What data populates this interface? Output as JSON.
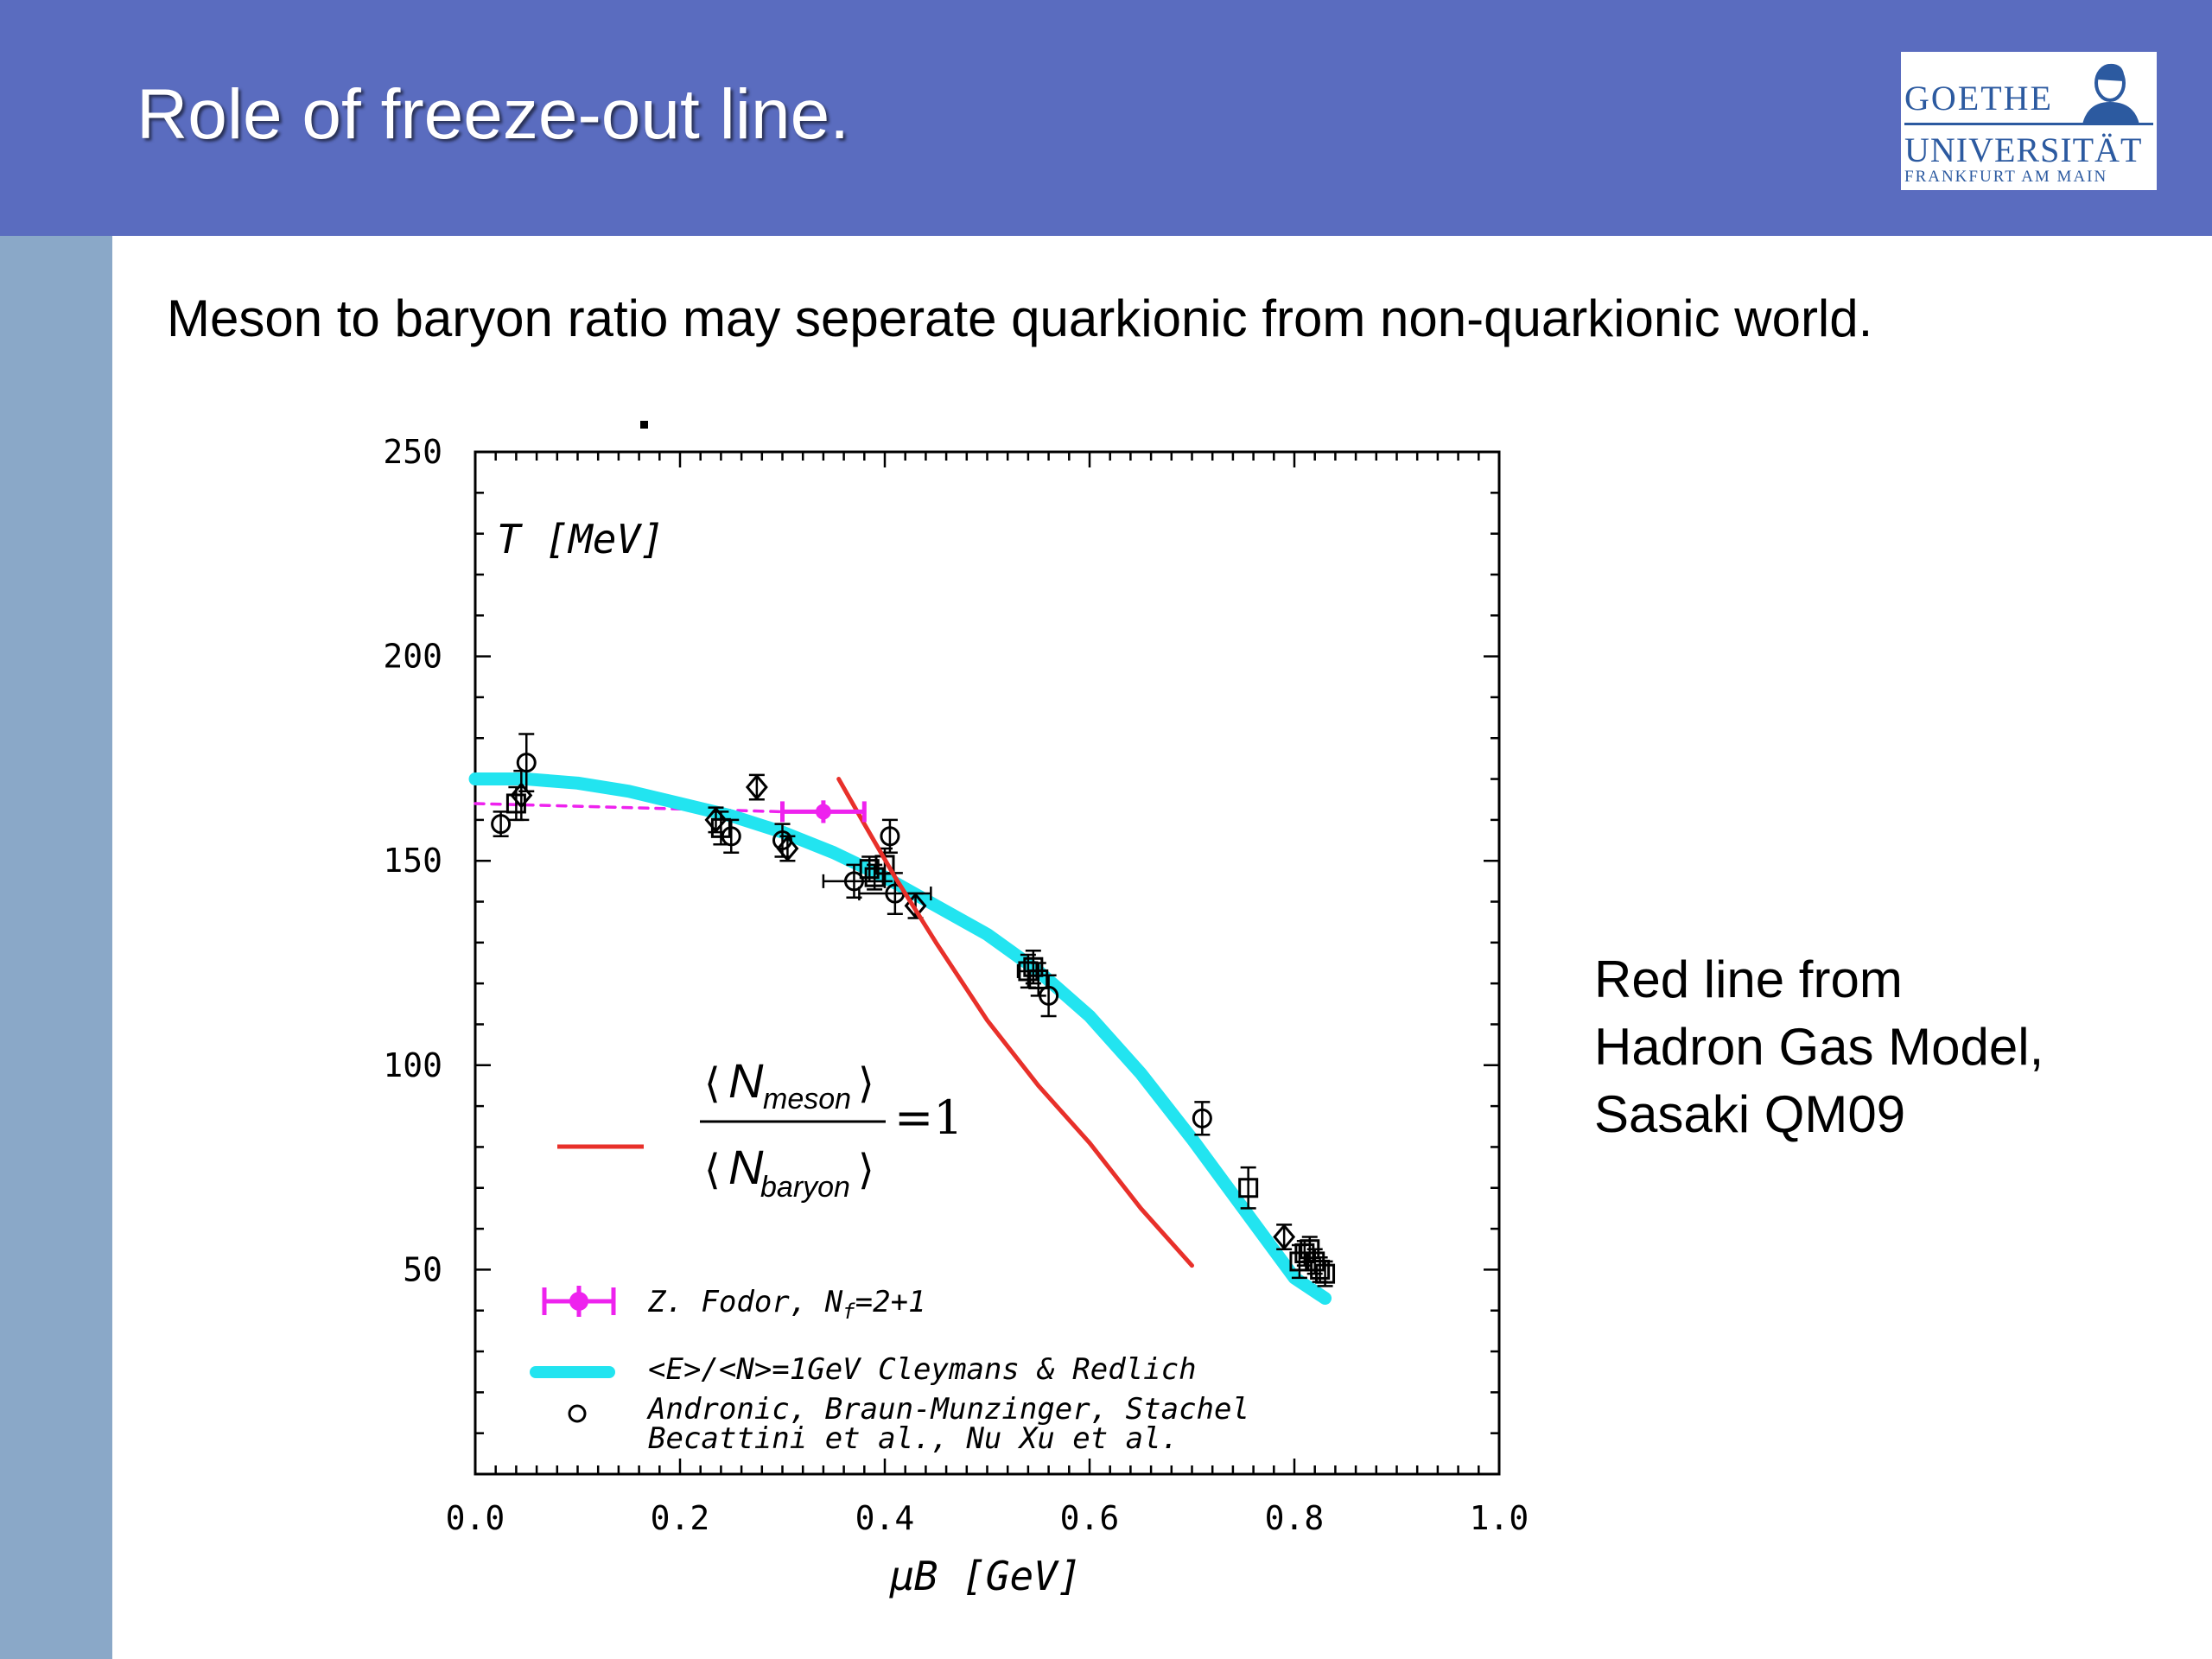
{
  "slide": {
    "title": "Role of freeze-out line.",
    "subtitle": "Meson to baryon ratio may seperate quarkionic from non-quarkionic world.",
    "note_lines": [
      "Red line from",
      "Hadron Gas Model,",
      "Sasaki QM09"
    ]
  },
  "logo": {
    "line1": "GOETHE",
    "line2": "UNIVERSITÄT",
    "line3": "FRANKFURT AM MAIN"
  },
  "colors": {
    "header": "#5a6cbf",
    "sidebar": "#8aa8c8",
    "red_line": "#e8302a",
    "cyan_curve": "#22e4f0",
    "magenta": "#ee22ee",
    "logo_blue": "#2c5aa0"
  },
  "chart_data": {
    "type": "scatter",
    "xlabel": "μB [GeV]",
    "ylabel": "T [MeV]",
    "xlim": [
      0.0,
      1.0
    ],
    "ylim": [
      0,
      250
    ],
    "xticks": [
      "0.0",
      "0.2",
      "0.4",
      "0.6",
      "0.8",
      "1.0"
    ],
    "yticks": [
      "50",
      "100",
      "150",
      "200",
      "250"
    ],
    "ratio_label": {
      "numerator": "N",
      "numerator_sub": "meson",
      "denominator": "N",
      "denominator_sub": "baryon",
      "equals": "=1"
    },
    "legend": [
      {
        "key": "fodor",
        "label": "Z. Fodor, N",
        "sub": "f",
        "suffix": "=2+1"
      },
      {
        "key": "cleymans",
        "label": "<E>/<N>=1GeV Cleymans & Redlich"
      },
      {
        "key": "data",
        "label": "Andronic, Braun-Munzinger, Stachel",
        "label2": "Becattini et al., Nu Xu et al."
      }
    ],
    "series": [
      {
        "key": "cleymans",
        "style": "line",
        "color": "#22e4f0",
        "x": [
          0.0,
          0.05,
          0.1,
          0.15,
          0.2,
          0.25,
          0.3,
          0.35,
          0.4,
          0.45,
          0.5,
          0.55,
          0.6,
          0.65,
          0.7,
          0.75,
          0.8,
          0.83
        ],
        "y": [
          170,
          170,
          169,
          167,
          164,
          161,
          157,
          152,
          146,
          139,
          132,
          123,
          112,
          98,
          82,
          65,
          48,
          43
        ]
      },
      {
        "key": "hadron_gas_model",
        "style": "line",
        "color": "#e8302a",
        "x": [
          0.355,
          0.38,
          0.41,
          0.45,
          0.5,
          0.55,
          0.6,
          0.65,
          0.7
        ],
        "y": [
          170,
          159,
          146,
          130,
          111,
          95,
          81,
          65,
          51
        ]
      },
      {
        "key": "fodor_dashed",
        "style": "dashed",
        "color": "#ee22ee",
        "x": [
          0.0,
          0.3
        ],
        "y": [
          164,
          162
        ]
      },
      {
        "key": "fodor",
        "style": "point",
        "color": "#ee22ee",
        "points": [
          {
            "x": 0.34,
            "y": 162,
            "xerr": 0.04,
            "yerr": 1.5
          }
        ]
      },
      {
        "key": "data",
        "style": "markers",
        "color": "#000000",
        "points": [
          {
            "x": 0.025,
            "y": 159,
            "marker": "circle",
            "yerr": 3
          },
          {
            "x": 0.04,
            "y": 164,
            "marker": "square",
            "yerr": 4
          },
          {
            "x": 0.045,
            "y": 166,
            "marker": "diamond",
            "yerr": 6
          },
          {
            "x": 0.05,
            "y": 174,
            "marker": "circle",
            "yerr": 7
          },
          {
            "x": 0.235,
            "y": 160,
            "marker": "diamond",
            "yerr": 3
          },
          {
            "x": 0.24,
            "y": 158,
            "marker": "square",
            "yerr": 4
          },
          {
            "x": 0.25,
            "y": 156,
            "marker": "circle",
            "yerr": 4
          },
          {
            "x": 0.275,
            "y": 168,
            "marker": "diamond",
            "yerr": 3
          },
          {
            "x": 0.3,
            "y": 155,
            "marker": "circle",
            "yerr": 4
          },
          {
            "x": 0.305,
            "y": 153,
            "marker": "diamond",
            "yerr": 3
          },
          {
            "x": 0.37,
            "y": 145,
            "marker": "circle",
            "xerr": 0.03,
            "yerr": 4
          },
          {
            "x": 0.385,
            "y": 148,
            "marker": "square",
            "yerr": 3
          },
          {
            "x": 0.39,
            "y": 146,
            "marker": "square",
            "yerr": 3
          },
          {
            "x": 0.4,
            "y": 149,
            "marker": "square",
            "yerr": 4
          },
          {
            "x": 0.405,
            "y": 156,
            "marker": "circle",
            "yerr": 4
          },
          {
            "x": 0.41,
            "y": 142,
            "marker": "circle",
            "xerr": 0.035,
            "yerr": 5
          },
          {
            "x": 0.43,
            "y": 139,
            "marker": "diamond",
            "yerr": 3
          },
          {
            "x": 0.54,
            "y": 123,
            "marker": "square",
            "xerr": 0.01,
            "yerr": 4
          },
          {
            "x": 0.545,
            "y": 124,
            "marker": "square",
            "yerr": 4
          },
          {
            "x": 0.55,
            "y": 121,
            "marker": "square",
            "yerr": 4
          },
          {
            "x": 0.56,
            "y": 117,
            "marker": "circle",
            "yerr": 5
          },
          {
            "x": 0.71,
            "y": 87,
            "marker": "circle",
            "yerr": 4
          },
          {
            "x": 0.755,
            "y": 70,
            "marker": "square",
            "yerr": 5
          },
          {
            "x": 0.79,
            "y": 58,
            "marker": "diamond",
            "yerr": 3
          },
          {
            "x": 0.805,
            "y": 52,
            "marker": "square",
            "yerr": 4
          },
          {
            "x": 0.81,
            "y": 54,
            "marker": "square",
            "yerr": 3
          },
          {
            "x": 0.815,
            "y": 55,
            "marker": "square",
            "yerr": 3
          },
          {
            "x": 0.82,
            "y": 52,
            "marker": "square",
            "yerr": 3
          },
          {
            "x": 0.825,
            "y": 50,
            "marker": "square",
            "yerr": 3
          },
          {
            "x": 0.83,
            "y": 49,
            "marker": "square",
            "yerr": 3
          }
        ]
      }
    ]
  }
}
